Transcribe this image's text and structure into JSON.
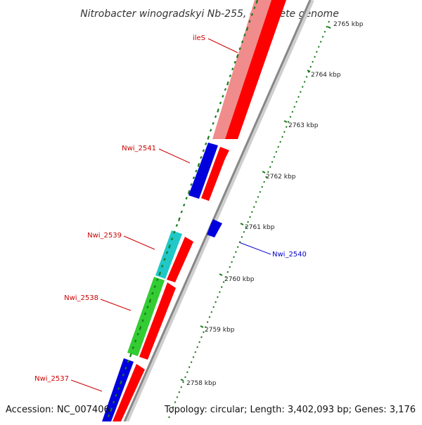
{
  "title": "Nitrobacter winogradskyi Nb-255, complete genome",
  "accession": "Accession: NC_007406",
  "topology": "Topology: circular; Length: 3,402,093 bp; Genes: 3,176",
  "colors": {
    "label_red": "#cc0000",
    "label_blue": "#0000cc",
    "gene_red": "#ff0000",
    "gene_pink": "#f08c8c",
    "gene_blue": "#0000dd",
    "gene_cyan": "#20c8c8",
    "gene_green": "#33cc33",
    "backbone": "#999999",
    "tick_green": "#1a7a1a"
  },
  "kbp_ticks": [
    "2765 kbp",
    "2764 kbp",
    "2763 kbp",
    "2762 kbp",
    "2761 kbp",
    "2760 kbp",
    "2759 kbp",
    "2758 kbp"
  ],
  "gene_labels": [
    {
      "name": "ileS",
      "color": "red"
    },
    {
      "name": "Nwi_2541",
      "color": "red"
    },
    {
      "name": "Nwi_2539",
      "color": "red"
    },
    {
      "name": "Nwi_2540",
      "color": "blue"
    },
    {
      "name": "Nwi_2538",
      "color": "red"
    },
    {
      "name": "Nwi_2537",
      "color": "red"
    }
  ]
}
